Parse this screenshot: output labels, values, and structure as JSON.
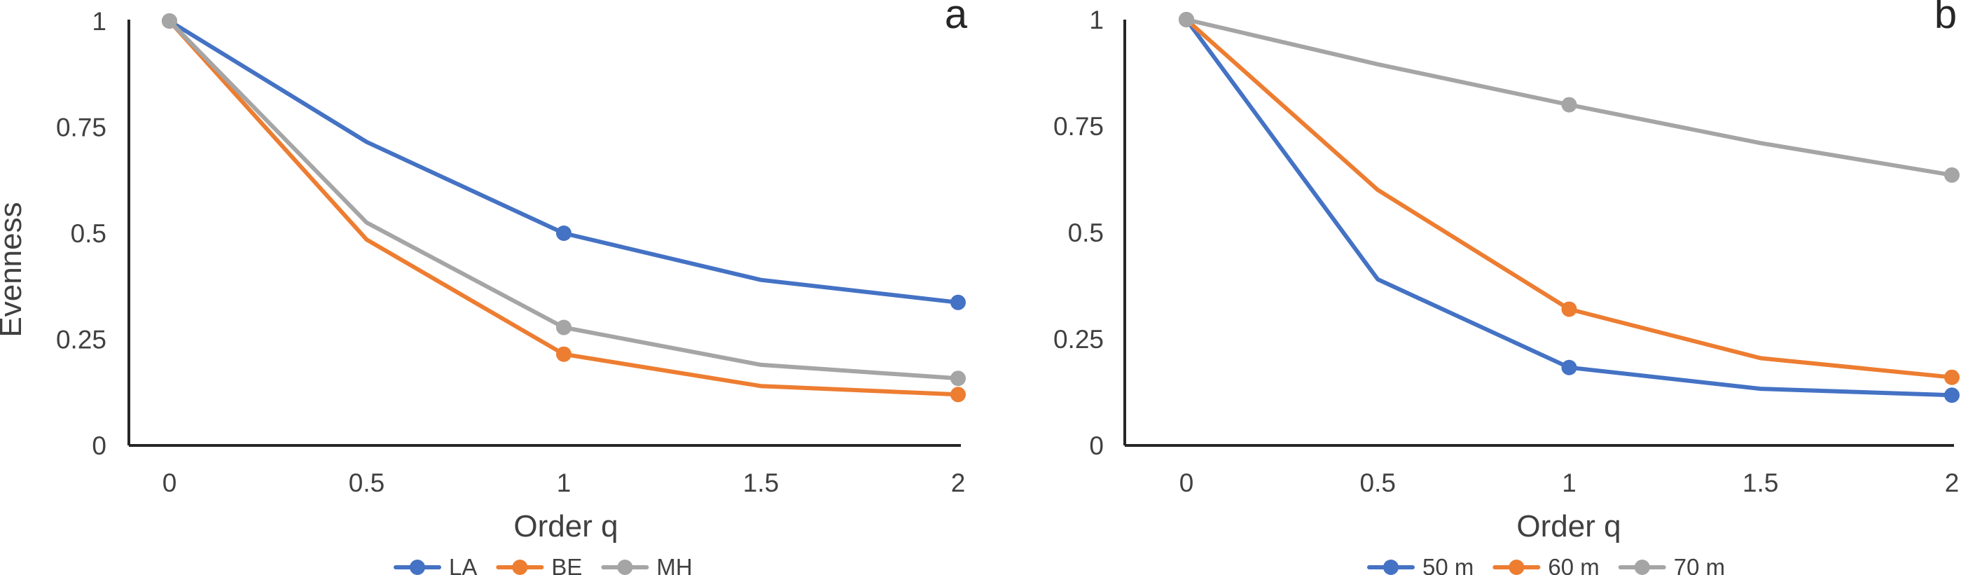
{
  "chart_data": [
    {
      "type": "line",
      "panel_label": "a",
      "x": [
        0,
        0.5,
        1,
        1.5,
        2
      ],
      "x_tick_labels": [
        "0",
        "0.5",
        "1",
        "1.5",
        "2"
      ],
      "y_tick_labels": [
        "0",
        "0.25",
        "0.5",
        "0.75",
        "1"
      ],
      "xlabel": "Order q",
      "ylabel": "Evenness",
      "ylim": [
        0,
        1
      ],
      "grid": false,
      "legend_position": "bottom",
      "marker_x": [
        0,
        1,
        2
      ],
      "series": [
        {
          "name": "LA",
          "color": "#4472C4",
          "values": [
            1,
            0.715,
            0.5,
            0.39,
            0.337
          ]
        },
        {
          "name": "BE",
          "color": "#ED7D31",
          "values": [
            1,
            0.485,
            0.215,
            0.14,
            0.12
          ]
        },
        {
          "name": "MH",
          "color": "#A5A5A5",
          "values": [
            1,
            0.525,
            0.278,
            0.19,
            0.158
          ]
        }
      ]
    },
    {
      "type": "line",
      "panel_label": "b",
      "x": [
        0,
        0.5,
        1,
        1.5,
        2
      ],
      "x_tick_labels": [
        "0",
        "0.5",
        "1",
        "1.5",
        "2"
      ],
      "y_tick_labels": [
        "0",
        "0.25",
        "0.5",
        "0.75",
        "1"
      ],
      "xlabel": "Order q",
      "ylabel": "",
      "ylim": [
        0,
        1
      ],
      "grid": false,
      "legend_position": "bottom",
      "marker_x": [
        0,
        1,
        2
      ],
      "series": [
        {
          "name": "50 m",
          "color": "#4472C4",
          "values": [
            1,
            0.39,
            0.183,
            0.133,
            0.118
          ]
        },
        {
          "name": "60 m",
          "color": "#ED7D31",
          "values": [
            1,
            0.6,
            0.32,
            0.205,
            0.16
          ]
        },
        {
          "name": "70 m",
          "color": "#A5A5A5",
          "values": [
            1,
            0.895,
            0.8,
            0.71,
            0.635
          ]
        }
      ]
    }
  ]
}
